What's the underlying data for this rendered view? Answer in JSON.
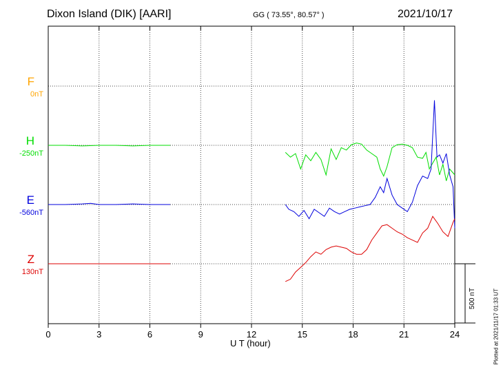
{
  "header": {
    "station": "Dixon Island (DIK)  [AARI]",
    "coords": "GG ( 73.55°,  80.57° )",
    "date": "2021/10/17"
  },
  "footer": {
    "plotted_note": "Plotted at 2021/11/17 01:33 UT"
  },
  "chart_data": {
    "type": "line",
    "title": "Dixon Island (DIK)  [AARI]",
    "xlabel": "U T (hour)",
    "ylabel": "",
    "xlim": [
      0,
      24
    ],
    "xticks": [
      0,
      3,
      6,
      9,
      12,
      15,
      18,
      21,
      24
    ],
    "grid": true,
    "scale_bar": {
      "label": "500 nT",
      "value_nT": 500
    },
    "series": [
      {
        "name": "F",
        "offset_label": "0nT",
        "color": "#ffa500",
        "baseline_row": 1,
        "values": []
      },
      {
        "name": "H",
        "offset_label": "-250nT",
        "color": "#00dd00",
        "baseline_row": 2,
        "x": [
          0,
          1,
          2,
          3,
          4,
          5,
          6,
          7.2,
          14,
          14.3,
          14.6,
          14.9,
          15.2,
          15.5,
          15.8,
          16.1,
          16.4,
          16.7,
          17.0,
          17.3,
          17.6,
          17.9,
          18.2,
          18.5,
          18.8,
          19.1,
          19.4,
          19.6,
          19.8,
          20.0,
          20.3,
          20.6,
          20.9,
          21.2,
          21.5,
          21.8,
          22.1,
          22.3,
          22.5,
          22.7,
          22.9,
          23.1,
          23.3,
          23.5,
          23.7,
          24
        ],
        "values": [
          0,
          0,
          -5,
          0,
          0,
          -5,
          0,
          0,
          -60,
          -100,
          -70,
          -200,
          -80,
          -130,
          -60,
          -120,
          -250,
          -30,
          -120,
          -20,
          -40,
          5,
          20,
          10,
          -40,
          -70,
          -100,
          -200,
          -260,
          -180,
          -20,
          5,
          10,
          0,
          -20,
          -100,
          -110,
          -60,
          -200,
          -150,
          -100,
          -250,
          -160,
          -300,
          -200,
          -250
        ]
      },
      {
        "name": "E",
        "offset_label": "-560nT",
        "color": "#0000dd",
        "baseline_row": 3,
        "x": [
          0,
          1,
          2,
          2.5,
          3,
          4,
          5,
          6,
          7.2,
          14,
          14.2,
          14.5,
          14.8,
          15.1,
          15.4,
          15.7,
          16.0,
          16.3,
          16.6,
          16.9,
          17.2,
          17.5,
          17.8,
          18.1,
          18.4,
          18.7,
          19.0,
          19.3,
          19.6,
          19.8,
          20.0,
          20.3,
          20.6,
          20.9,
          21.2,
          21.5,
          21.8,
          22.1,
          22.4,
          22.6,
          22.8,
          22.95,
          23.1,
          23.3,
          23.5,
          23.7,
          23.9,
          24
        ],
        "values": [
          0,
          0,
          5,
          10,
          0,
          0,
          5,
          0,
          0,
          0,
          -40,
          -60,
          -100,
          -50,
          -120,
          -40,
          -70,
          -100,
          -30,
          -60,
          -80,
          -60,
          -40,
          -30,
          -20,
          -10,
          0,
          60,
          150,
          100,
          220,
          80,
          0,
          -30,
          -60,
          20,
          160,
          240,
          220,
          300,
          880,
          400,
          420,
          350,
          430,
          250,
          150,
          -200
        ]
      },
      {
        "name": "Z",
        "offset_label": "130nT",
        "color": "#dd0000",
        "baseline_row": 4,
        "x": [
          0,
          1,
          2,
          3,
          4,
          5,
          6,
          7.2,
          14,
          14.3,
          14.6,
          14.9,
          15.2,
          15.5,
          15.8,
          16.1,
          16.4,
          16.7,
          17.0,
          17.3,
          17.6,
          17.9,
          18.2,
          18.5,
          18.8,
          19.1,
          19.4,
          19.7,
          20.0,
          20.3,
          20.6,
          20.9,
          21.2,
          21.5,
          21.8,
          22.1,
          22.4,
          22.7,
          23.0,
          23.3,
          23.6,
          23.9,
          24
        ],
        "values": [
          0,
          0,
          0,
          0,
          0,
          0,
          0,
          0,
          -150,
          -130,
          -70,
          -30,
          10,
          60,
          100,
          80,
          120,
          140,
          150,
          140,
          130,
          100,
          80,
          80,
          120,
          200,
          260,
          320,
          330,
          300,
          270,
          250,
          220,
          200,
          180,
          260,
          300,
          400,
          340,
          270,
          230,
          350,
          380
        ]
      }
    ]
  }
}
